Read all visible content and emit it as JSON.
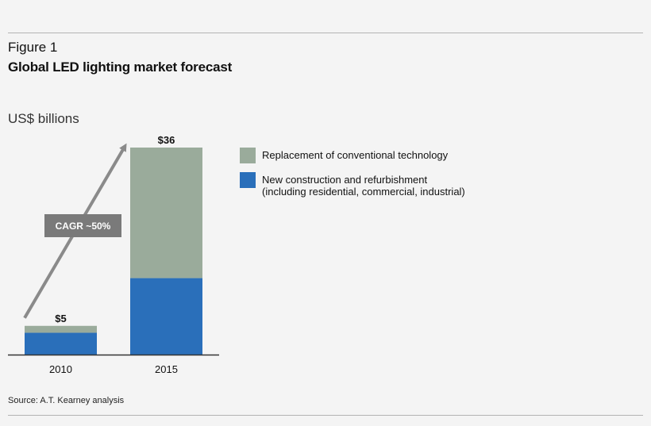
{
  "figure": {
    "label": "Figure 1",
    "title": "Global LED lighting market forecast"
  },
  "source": "Source: A.T. Kearney analysis",
  "colors": {
    "replacement": "#9aab9b",
    "new_construction": "#2a6fba",
    "arrow": "#8a8a8a",
    "badge": "#7a7a7a"
  },
  "chart_data": {
    "type": "bar",
    "stacked": true,
    "title": "Global LED lighting market forecast",
    "ylabel": "US$ billions",
    "xlabel": "",
    "categories": [
      "2010",
      "2015"
    ],
    "series": [
      {
        "name": "New construction and refurbishment",
        "name_line2": "(including residential, commercial, industrial)",
        "values": [
          3.8,
          13.3
        ]
      },
      {
        "name": "Replacement of conventional technology",
        "values": [
          1.2,
          22.7
        ]
      }
    ],
    "totals": [
      5,
      36
    ],
    "total_labels": [
      "$5",
      "$36"
    ],
    "ylim": [
      0,
      36
    ],
    "annotation": "CAGR ~50%",
    "grid": false,
    "legend": "top-right"
  }
}
